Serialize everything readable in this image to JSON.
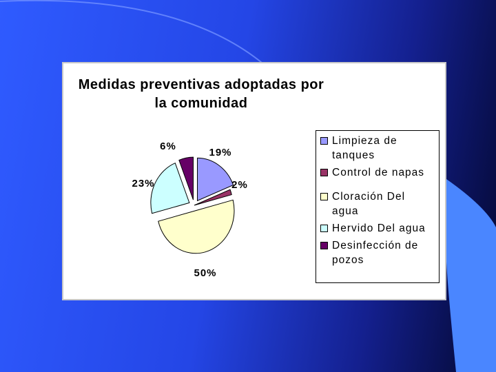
{
  "colors": {
    "slide_light": "#4a86ff",
    "panel_background": "#ffffff"
  },
  "chart_data": {
    "type": "pie",
    "title": "Medidas preventivas adoptadas por\nla comunidad",
    "legend_position": "right",
    "slices": [
      {
        "label": "Limpieza de tanques",
        "value": 19,
        "display": "19%",
        "color": "#9999ff"
      },
      {
        "label": "Control de napas",
        "value": 2,
        "display": "2%",
        "color": "#993366"
      },
      {
        "label": "Cloración Del agua",
        "value": 50,
        "display": "50%",
        "color": "#ffffcc"
      },
      {
        "label": "Hervido Del agua",
        "value": 23,
        "display": "23%",
        "color": "#ccffff"
      },
      {
        "label": "Desinfección de pozos",
        "value": 6,
        "display": "6%",
        "color": "#660066"
      }
    ]
  }
}
